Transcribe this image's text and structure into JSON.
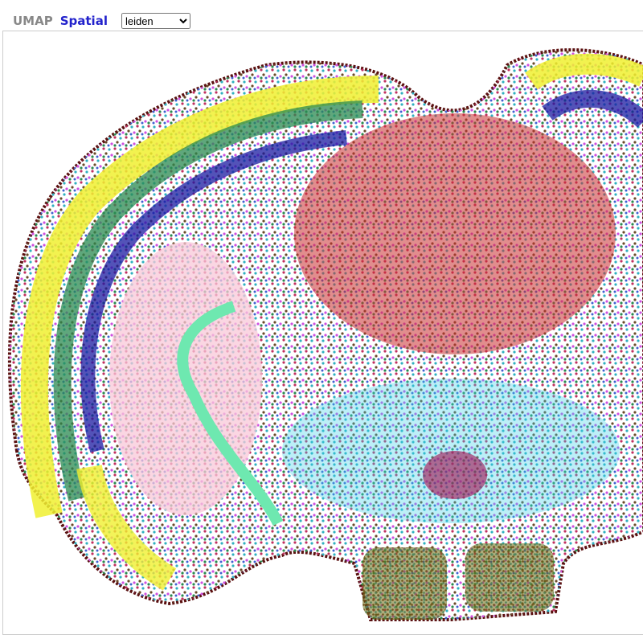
{
  "tabs": [
    "UMAP",
    "Spatial"
  ],
  "select": {
    "value": "leiden"
  }
}
